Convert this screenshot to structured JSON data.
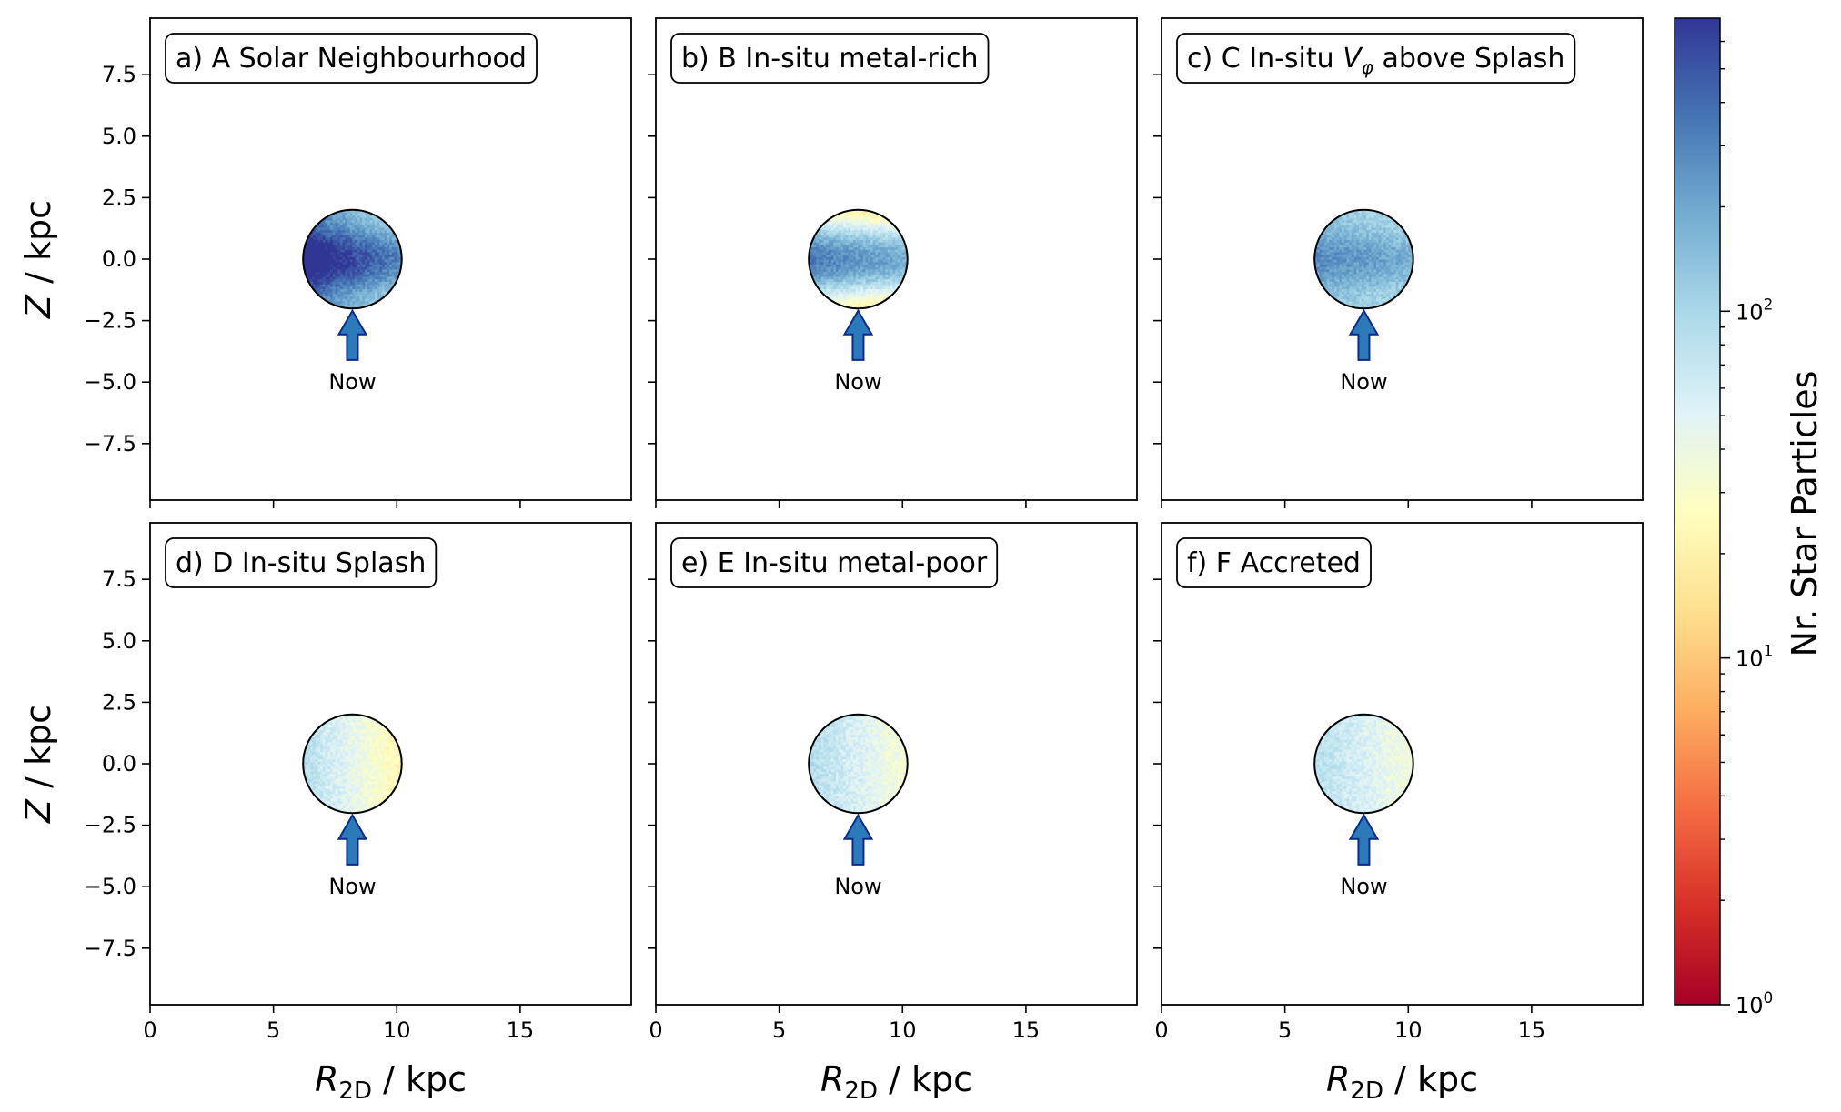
{
  "chart_data": {
    "type": "heatmap",
    "x_axis": {
      "label_main": "R",
      "label_sub": "2D",
      "label_unit": " / kpc",
      "lim": [
        0,
        19.5
      ],
      "ticks": [
        0,
        5,
        10,
        15
      ]
    },
    "y_axis": {
      "label_main": "Z",
      "label_unit": " / kpc",
      "lim": [
        -9.8,
        9.8
      ],
      "ticks": [
        7.5,
        5.0,
        2.5,
        0.0,
        -2.5,
        -5.0,
        -7.5
      ],
      "tick_labels": [
        "7.5",
        "5.0",
        "2.5",
        "0.0",
        "−2.5",
        "−5.0",
        "−7.5"
      ]
    },
    "selection_circle": {
      "center_r": 8.2,
      "center_z": 0.0,
      "radius": 2.0
    },
    "arrow": {
      "r": 8.2,
      "z_from": -4.1,
      "z_to": -2.1,
      "label": "Now",
      "label_z": -5.0,
      "fill": "#2b7bba",
      "stroke": "#0b2a8c"
    },
    "colorbar": {
      "label": "Nr. Star Particles",
      "scale": "log",
      "range": [
        1,
        700
      ],
      "colormap": "RdYlBu",
      "ticks": [
        {
          "value": 1,
          "base": "10",
          "exp": "0"
        },
        {
          "value": 10,
          "base": "10",
          "exp": "1"
        },
        {
          "value": 100,
          "base": "10",
          "exp": "2"
        }
      ],
      "minor_ticks": [
        2,
        3,
        4,
        5,
        6,
        7,
        8,
        9,
        20,
        30,
        40,
        50,
        60,
        70,
        80,
        90,
        200,
        300,
        400,
        500,
        600
      ]
    },
    "panels": [
      {
        "id": "a",
        "prefix": "a) A Solar Neighbourhood",
        "suffix": "",
        "symbol": "",
        "symbol_sub": "",
        "peak": 600,
        "floor": 160,
        "disk_thin": true,
        "gradient": 0.6
      },
      {
        "id": "b",
        "prefix": "b) B In-situ metal-rich",
        "suffix": "",
        "symbol": "",
        "symbol_sub": "",
        "peak": 250,
        "floor": 18,
        "disk_thin": true,
        "gradient": 0.3
      },
      {
        "id": "c",
        "prefix": "c) C In-situ ",
        "suffix": " above Splash",
        "symbol": "V",
        "symbol_sub": "φ",
        "peak": 230,
        "floor": 110,
        "disk_thin": true,
        "gradient": 0.2
      },
      {
        "id": "d",
        "prefix": "d) D In-situ Splash",
        "suffix": "",
        "symbol": "",
        "symbol_sub": "",
        "peak": 45,
        "floor": 12,
        "disk_thin": false,
        "gradient": -0.6
      },
      {
        "id": "e",
        "prefix": "e) E In-situ metal-poor",
        "suffix": "",
        "symbol": "",
        "symbol_sub": "",
        "peak": 55,
        "floor": 18,
        "disk_thin": false,
        "gradient": -0.45
      },
      {
        "id": "f",
        "prefix": "f) F Accreted",
        "suffix": "",
        "symbol": "",
        "symbol_sub": "",
        "peak": 55,
        "floor": 20,
        "disk_thin": false,
        "gradient": -0.4
      }
    ]
  }
}
